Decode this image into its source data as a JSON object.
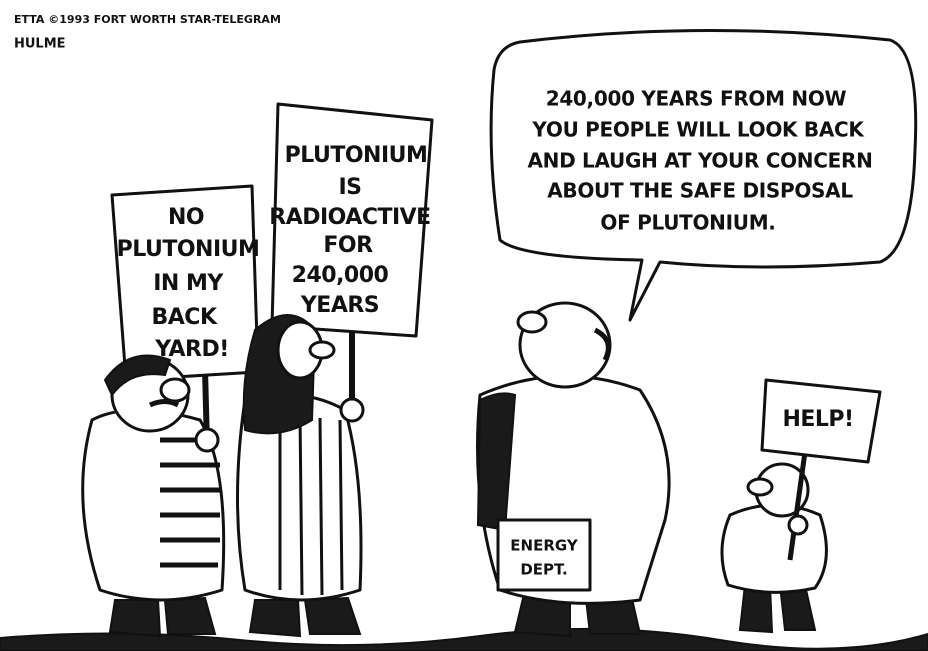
{
  "credit": {
    "line": "ETTA ©1993 FORT WORTH STAR-TELEGRAM",
    "artist": "HULME"
  },
  "signs": [
    {
      "lines": [
        "NO",
        "PLUTONIUM",
        "IN MY",
        "BACK",
        "YARD!"
      ]
    },
    {
      "lines": [
        "PLUTONIUM",
        "IS",
        "RADIOACTIVE",
        "FOR",
        "240,000",
        "YEARS"
      ]
    },
    {
      "lines": [
        "HELP!"
      ]
    }
  ],
  "speech": {
    "lines": [
      "240,000 YEARS FROM NOW",
      "YOU PEOPLE WILL LOOK BACK",
      "AND LAUGH AT YOUR CONCERN",
      "ABOUT THE SAFE DISPOSAL",
      "OF PLUTONIUM."
    ]
  },
  "briefcase": {
    "lines": [
      "ENERGY",
      "DEPT."
    ]
  }
}
